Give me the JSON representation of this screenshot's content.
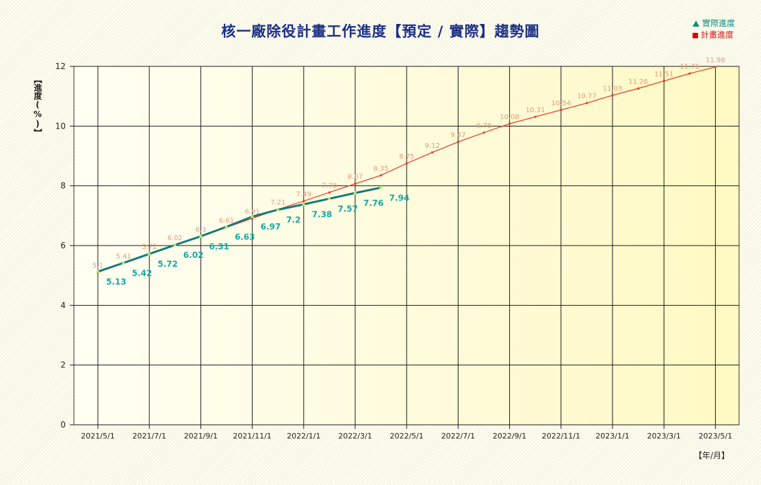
{
  "chart_data": {
    "type": "line",
    "title": "核一廠除役計畫工作進度【預定 / 實際】趨勢圖",
    "ylabel": "【進度(%)】",
    "xlabel": "【年/月】",
    "ylim": [
      0,
      12
    ],
    "yticks": [
      "0",
      "2",
      "4",
      "6",
      "8",
      "10",
      "12"
    ],
    "x_tick_labels": [
      "2021/5/1",
      "2021/7/1",
      "2021/9/1",
      "2021/11/1",
      "2022/1/1",
      "2022/3/1",
      "2022/5/1",
      "2022/7/1",
      "2022/9/1",
      "2022/11/1",
      "2023/1/1",
      "2023/3/1",
      "2023/5/1"
    ],
    "legend_position": "top-right",
    "grid": true,
    "series": [
      {
        "name": "實際進度",
        "color": "#137a7a",
        "label_color": "#1aa8a4",
        "marker": "triangle",
        "x": [
          "2021/5/1",
          "2021/6/1",
          "2021/7/1",
          "2021/8/1",
          "2021/9/1",
          "2021/10/1",
          "2021/11/1",
          "2021/12/1",
          "2022/1/1",
          "2022/2/1",
          "2022/3/1",
          "2022/4/1"
        ],
        "values": [
          5.13,
          5.42,
          5.72,
          6.02,
          6.31,
          6.63,
          6.97,
          7.2,
          7.38,
          7.57,
          7.76,
          7.94
        ],
        "labels": [
          "5.13",
          "5.42",
          "5.72",
          "6.02",
          "6.31",
          "6.63",
          "6.97",
          "7.2",
          "7.38",
          "7.57",
          "7.76",
          "7.94"
        ]
      },
      {
        "name": "計畫進度",
        "color": "#e8412c",
        "label_color": "#e39a7e",
        "marker": "square",
        "x": [
          "2021/5/1",
          "2021/6/1",
          "2021/7/1",
          "2021/8/1",
          "2021/9/1",
          "2021/10/1",
          "2021/11/1",
          "2021/12/1",
          "2022/1/1",
          "2022/2/1",
          "2022/3/1",
          "2022/4/1",
          "2022/5/1",
          "2022/6/1",
          "2022/7/1",
          "2022/8/1",
          "2022/9/1",
          "2022/10/1",
          "2022/11/1",
          "2022/12/1",
          "2023/1/1",
          "2023/2/1",
          "2023/3/1",
          "2023/4/1",
          "2023/5/1"
        ],
        "values": [
          5.1,
          5.41,
          5.72,
          6.02,
          6.3,
          6.61,
          6.91,
          7.21,
          7.49,
          7.78,
          8.07,
          8.35,
          8.75,
          9.12,
          9.47,
          9.78,
          10.08,
          10.31,
          10.54,
          10.77,
          11.03,
          11.26,
          11.51,
          11.76,
          11.98
        ],
        "labels": [
          "5.1",
          "5.41",
          "5.72",
          "6.02",
          "6.3",
          "6.61",
          "6.91",
          "7.21",
          "7.49",
          "7.78",
          "8.07",
          "8.35",
          "8.75",
          "9.12",
          "9.47",
          "9.78",
          "10.08",
          "10.31",
          "10.54",
          "10.77",
          "11.03",
          "11.26",
          "11.51",
          "11.76",
          "11.98"
        ]
      }
    ]
  }
}
